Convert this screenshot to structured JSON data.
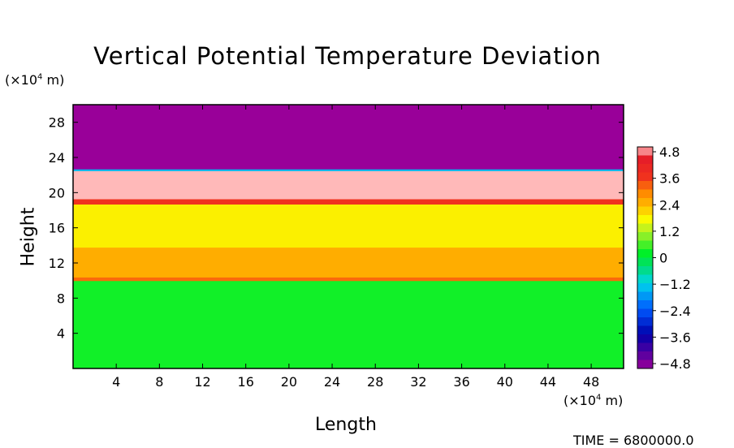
{
  "chart_data": {
    "type": "heatmap",
    "title": "Vertical Potential Temperature Deviation",
    "xlabel": "Length",
    "ylabel": "Height",
    "x_unit": "(×10⁴ m)",
    "y_unit": "(×10⁴ m)",
    "xlim": [
      0,
      51
    ],
    "ylim": [
      0,
      30
    ],
    "x_ticks": [
      4,
      8,
      12,
      16,
      20,
      24,
      28,
      32,
      36,
      40,
      44,
      48
    ],
    "y_ticks": [
      4,
      8,
      12,
      16,
      20,
      24,
      28
    ],
    "colorbar": {
      "ticks": [
        "4.8",
        "3.6",
        "2.4",
        "1.2",
        "0",
        "−1.2",
        "−2.4",
        "−3.6",
        "−4.8"
      ],
      "range": [
        -5.2,
        5.2
      ]
    },
    "layers": [
      {
        "y_from": 0,
        "y_to": 10,
        "value": 0.3
      },
      {
        "y_from": 10,
        "y_to": 10.4,
        "value": 3.3
      },
      {
        "y_from": 10.4,
        "y_to": 13.8,
        "value": 2.6
      },
      {
        "y_from": 13.8,
        "y_to": 18.7,
        "value": 1.9
      },
      {
        "y_from": 18.7,
        "y_to": 19.3,
        "value": 3.8
      },
      {
        "y_from": 19.3,
        "y_to": 22.5,
        "value": 5.2
      },
      {
        "y_from": 22.5,
        "y_to": 22.7,
        "value": -1.5
      },
      {
        "y_from": 22.7,
        "y_to": 30,
        "value": -5.2
      }
    ],
    "time_label": "TIME = 6800000.0"
  }
}
